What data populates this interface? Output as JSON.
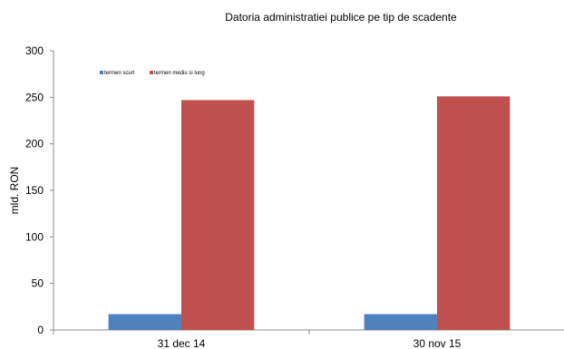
{
  "chart_data": {
    "type": "bar",
    "title": "Datoria administratiei publice  pe tip de scadente",
    "ylabel": "mld. RON",
    "xlabel": "",
    "categories": [
      "31 dec 14",
      "30 nov 15"
    ],
    "series": [
      {
        "name": "termen scurt",
        "values": [
          17,
          17
        ],
        "color": "#4f81bd"
      },
      {
        "name": "termen mediu si lung",
        "values": [
          247,
          251
        ],
        "color": "#c0504d"
      }
    ],
    "ylim": [
      0,
      300
    ],
    "yticks": [
      "0",
      "50",
      "100",
      "150",
      "200",
      "250",
      "300"
    ],
    "grid": false,
    "legend": "top-left"
  }
}
